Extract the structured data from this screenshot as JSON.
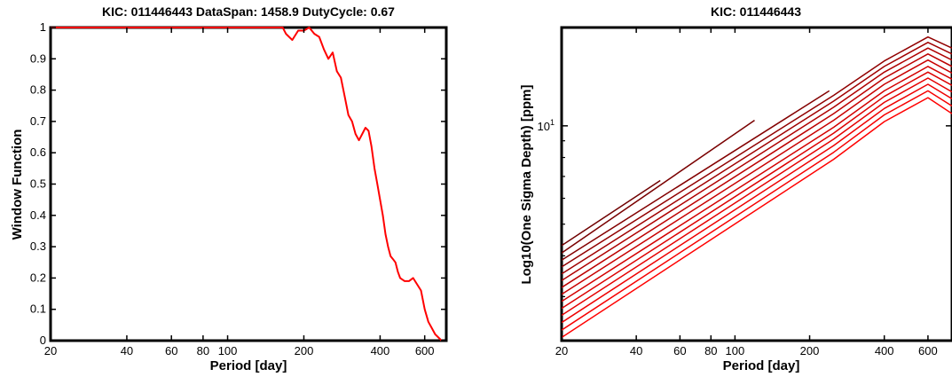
{
  "chart_data": [
    {
      "type": "line",
      "title": "KIC: 011446443 DataSpan: 1458.9 DutyCycle: 0.67",
      "xlabel": "Period [day]",
      "ylabel": "Window Function",
      "xscale": "log",
      "xlim": [
        20,
        730
      ],
      "ylim": [
        0,
        1
      ],
      "xticks": [
        20,
        40,
        60,
        80,
        100,
        200,
        400,
        600
      ],
      "yticks": [
        0,
        0.1,
        0.2,
        0.3,
        0.4,
        0.5,
        0.6,
        0.7,
        0.8,
        0.9,
        1
      ],
      "series": [
        {
          "color": "#ff0000",
          "x": [
            20,
            100,
            150,
            165,
            170,
            175,
            180,
            190,
            200,
            210,
            220,
            230,
            240,
            250,
            260,
            270,
            280,
            290,
            300,
            310,
            320,
            330,
            340,
            350,
            360,
            370,
            380,
            390,
            400,
            410,
            420,
            430,
            440,
            450,
            460,
            470,
            480,
            500,
            520,
            540,
            560,
            580,
            600,
            620,
            640,
            660,
            680,
            700
          ],
          "y": [
            1.0,
            1.0,
            1.0,
            1.0,
            0.98,
            0.97,
            0.96,
            0.99,
            0.99,
            1.0,
            0.98,
            0.97,
            0.93,
            0.9,
            0.92,
            0.86,
            0.84,
            0.78,
            0.72,
            0.7,
            0.66,
            0.64,
            0.66,
            0.68,
            0.67,
            0.62,
            0.55,
            0.5,
            0.45,
            0.4,
            0.34,
            0.3,
            0.27,
            0.26,
            0.25,
            0.22,
            0.2,
            0.19,
            0.19,
            0.2,
            0.18,
            0.16,
            0.1,
            0.06,
            0.04,
            0.02,
            0.01,
            0.0
          ]
        }
      ]
    },
    {
      "type": "line",
      "title": "KIC: 011446443",
      "xlabel": "Period [day]",
      "ylabel": "Log10(One Sigma Depth) [ppm]",
      "xscale": "log",
      "yscale": "log",
      "xlim": [
        20,
        750
      ],
      "ylim": [
        2.2,
        20
      ],
      "xticks": [
        20,
        40,
        60,
        80,
        100,
        200,
        400,
        600
      ],
      "ytick_labels": [
        {
          "value": 10,
          "base": "10",
          "exp": "1"
        }
      ],
      "series": [
        {
          "color": "#ff0000",
          "x": [
            20,
            250,
            400,
            600,
            750
          ],
          "y": [
            2.25,
            7.9,
            10.3,
            12.2,
            10.9
          ]
        },
        {
          "color": "#f60000",
          "x": [
            20,
            250,
            400,
            600,
            750
          ],
          "y": [
            2.37,
            8.3,
            10.8,
            12.8,
            11.5
          ]
        },
        {
          "color": "#ee0000",
          "x": [
            20,
            250,
            400,
            600,
            750
          ],
          "y": [
            2.5,
            8.7,
            11.3,
            13.4,
            12.1
          ]
        },
        {
          "color": "#e50000",
          "x": [
            20,
            250,
            400,
            600,
            750
          ],
          "y": [
            2.63,
            9.1,
            11.8,
            14.0,
            12.7
          ]
        },
        {
          "color": "#dc0000",
          "x": [
            20,
            250,
            400,
            600,
            750
          ],
          "y": [
            2.76,
            9.5,
            12.3,
            14.6,
            13.3
          ]
        },
        {
          "color": "#d30000",
          "x": [
            20,
            250,
            400,
            600,
            750
          ],
          "y": [
            2.9,
            9.9,
            12.8,
            15.2,
            13.9
          ]
        },
        {
          "color": "#c80000",
          "x": [
            20,
            250,
            400,
            600,
            750
          ],
          "y": [
            3.05,
            10.4,
            13.4,
            15.9,
            14.5
          ]
        },
        {
          "color": "#bc0000",
          "x": [
            20,
            250,
            400,
            600,
            750
          ],
          "y": [
            3.2,
            10.9,
            14.0,
            16.6,
            15.2
          ]
        },
        {
          "color": "#af0000",
          "x": [
            20,
            250,
            400,
            600,
            750
          ],
          "y": [
            3.36,
            11.4,
            14.6,
            17.3,
            15.9
          ]
        },
        {
          "color": "#a00000",
          "x": [
            20,
            250,
            400,
            600,
            750
          ],
          "y": [
            3.52,
            11.9,
            15.2,
            18.0,
            16.6
          ]
        },
        {
          "color": "#910000",
          "x": [
            20,
            250,
            400,
            600,
            750
          ],
          "y": [
            3.7,
            12.4,
            15.8,
            18.7,
            17.3
          ]
        },
        {
          "color": "#830000",
          "x": [
            20,
            240
          ],
          "y": [
            3.88,
            12.8
          ]
        },
        {
          "color": "#790000",
          "x": [
            20,
            120
          ],
          "y": [
            4.08,
            10.4
          ]
        },
        {
          "color": "#700000",
          "x": [
            20,
            50
          ],
          "y": [
            4.3,
            6.8
          ]
        }
      ]
    }
  ]
}
